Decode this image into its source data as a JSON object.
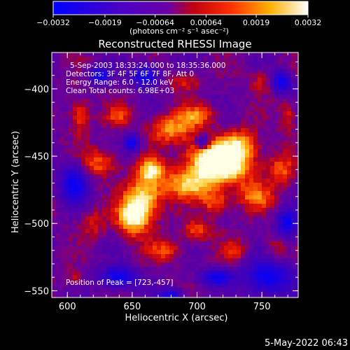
{
  "chart_data": {
    "type": "heatmap",
    "title": "Reconstructed RHESSI Image",
    "xlabel": "Heliocentric X (arcsec)",
    "ylabel": "Heliocentric Y (arcsec)",
    "xlim": [
      588,
      778
    ],
    "ylim": [
      -555,
      -373
    ],
    "x_ticks": [
      "600",
      "650",
      "700",
      "750"
    ],
    "y_ticks": [
      "-400",
      "-450",
      "-500",
      "-550"
    ],
    "colorbar": {
      "ticks": [
        "-0.0032",
        "-0.0019",
        "-0.00064",
        "0.00064",
        "0.0019",
        "0.0032"
      ],
      "range": [
        -0.0032,
        0.0032
      ],
      "units": "(photons cm⁻² s⁻¹ asec⁻²)"
    },
    "info_lines": [
      "5-Sep-2003 18:33:24.000 to 18:35:36.000",
      "Detectors: 3F 4F 5F 6F 7F 8F, Att 0",
      "Energy Range: 6.0 - 12.0 keV",
      "Clean     Total counts: 6.98E+03"
    ],
    "peak_label": "Position of Peak = [723,-457]",
    "peak": [
      723,
      -457
    ],
    "footer_date": "5-May-2022 06:43",
    "image_description_values": {
      "peak_value": 0.0032,
      "min_value": -0.0032
    }
  }
}
